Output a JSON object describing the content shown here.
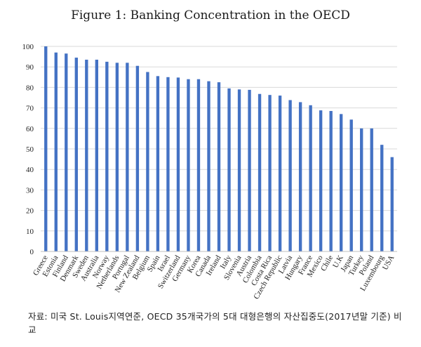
{
  "title": "Figure 1: Banking Concentration in the OECD",
  "source_note": "자료: 미국 St. Louis지역연준, OECD 35개국가의 5대 대형은행의 자산집중도(2017년말 기준) 비교",
  "colors": {
    "bar": "#4472c4",
    "grid": "#d9d9d9",
    "axis": "#bfbfbf"
  },
  "chart_data": {
    "type": "bar",
    "title": "Figure 1: Banking Concentration in the OECD",
    "categories": [
      "Greece",
      "Estonia",
      "Finland",
      "Denmark",
      "Sweden",
      "Australia",
      "Norway",
      "Netherlands",
      "Portugal",
      "New Zealand",
      "Belgium",
      "Spain",
      "Israel",
      "Switzerland",
      "Germany",
      "Korea",
      "Canada",
      "Ireland",
      "Italy",
      "Slovenia",
      "Austria",
      "Colombia",
      "Costa Rica",
      "Czech Republic",
      "Latvia",
      "Hungary",
      "France",
      "Mexico",
      "Chile",
      "U.K",
      "Japan",
      "Turkey",
      "Poland",
      "Luxembourg",
      "USA"
    ],
    "values": [
      100,
      97,
      96.5,
      94.5,
      93.5,
      93.5,
      92.5,
      92,
      92,
      90.5,
      87.5,
      85.5,
      85,
      84.8,
      84,
      84,
      83,
      82.5,
      79.5,
      79,
      78.8,
      76.8,
      76.3,
      76,
      73.8,
      72.8,
      71.3,
      68.8,
      68.5,
      67,
      64.3,
      60,
      60,
      52,
      46
    ],
    "ylim": [
      0,
      100
    ],
    "yticks": [
      0,
      10,
      20,
      30,
      40,
      50,
      60,
      70,
      80,
      90,
      100
    ],
    "grid": true,
    "legend": "none"
  }
}
